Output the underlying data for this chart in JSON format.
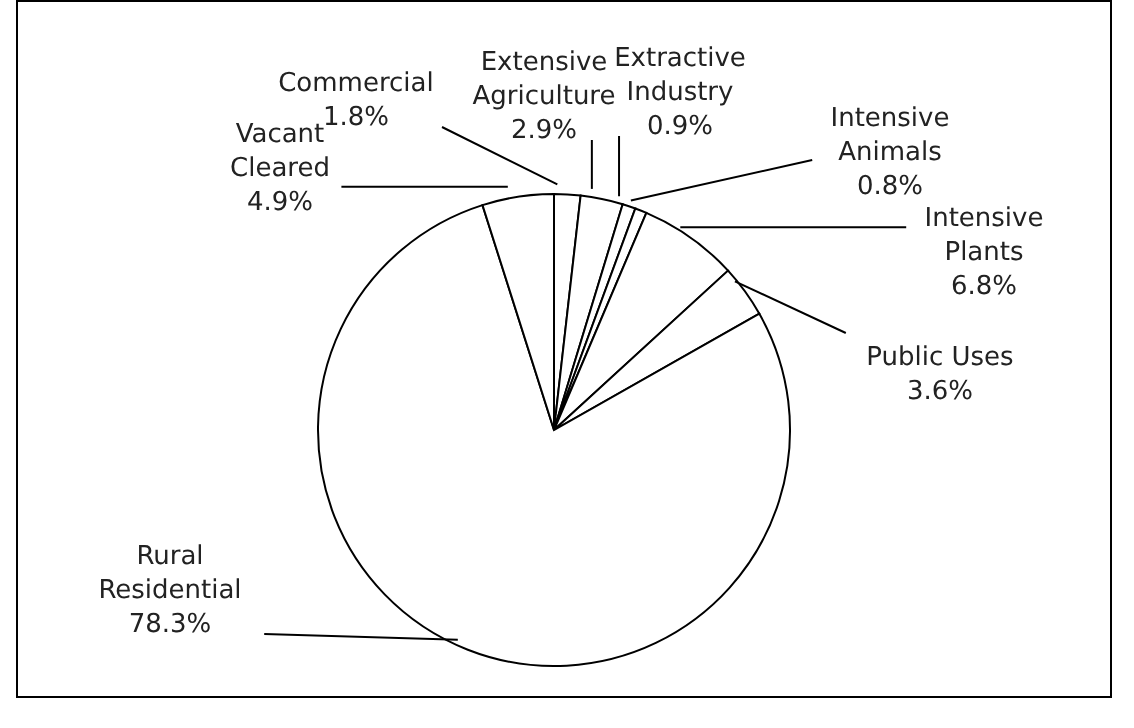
{
  "chart_data": {
    "type": "pie",
    "categories": [
      "Commercial",
      "Extensive Agriculture",
      "Extractive Industry",
      "Intensive Animals",
      "Intensive Plants",
      "Public Uses",
      "Rural Residential",
      "Vacant Cleared"
    ],
    "values": [
      1.8,
      2.9,
      0.9,
      0.8,
      6.8,
      3.6,
      78.3,
      4.9
    ],
    "value_labels": [
      "1.8%",
      "2.9%",
      "0.9%",
      "0.8%",
      "6.8%",
      "3.6%",
      "78.3%",
      "4.9%"
    ],
    "colors": [
      "#ffffff",
      "#ffffff",
      "#ffffff",
      "#ffffff",
      "#ffffff",
      "#ffffff",
      "#ffffff",
      "#ffffff"
    ],
    "legend": false
  }
}
